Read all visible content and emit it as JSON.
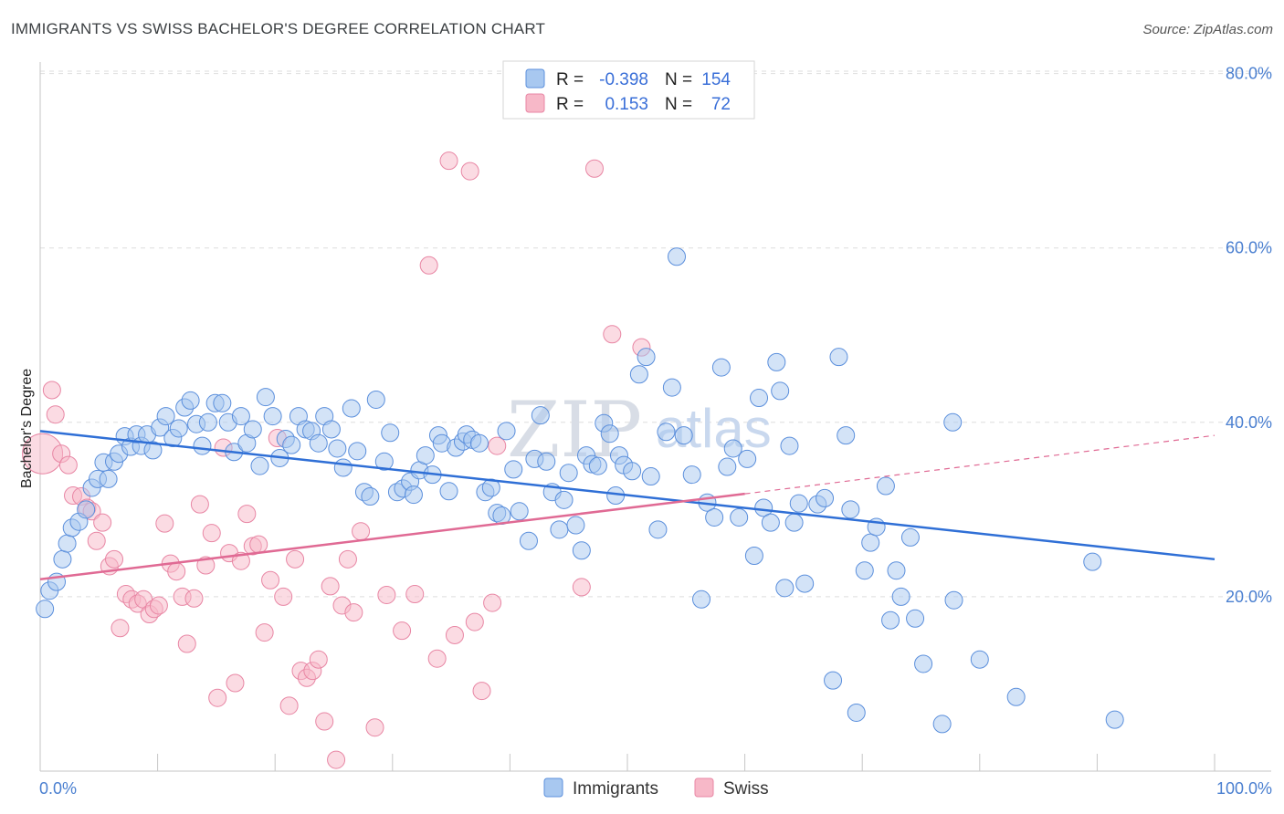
{
  "title": "IMMIGRANTS VS SWISS BACHELOR'S DEGREE CORRELATION CHART",
  "source": "Source: ZipAtlas.com",
  "watermark": {
    "zip": "ZIP",
    "atlas": "atlas"
  },
  "colors": {
    "immigrants_fill": "#a8c8f0",
    "immigrants_stroke": "#5b8fdc",
    "immigrants_line": "#2f6fd6",
    "swiss_fill": "#f7b8c8",
    "swiss_stroke": "#e886a4",
    "swiss_line": "#e06a94",
    "axis_label": "#4a7fd0"
  },
  "legend": {
    "rows": [
      {
        "r_label": "R =",
        "r_value": "-0.398",
        "n_label": "N =",
        "n_value": "154"
      },
      {
        "r_label": "R =",
        "r_value": "0.153",
        "n_label": "N =",
        "n_value": "72"
      }
    ]
  },
  "bottom_legend": {
    "immigrants": "Immigrants",
    "swiss": "Swiss"
  },
  "chart_data": {
    "type": "scatter",
    "xlabel": "",
    "ylabel": "Bachelor's Degree",
    "xlim": [
      0,
      100
    ],
    "ylim": [
      0,
      80
    ],
    "y_ticks": [
      {
        "v": 20,
        "label": "20.0%"
      },
      {
        "v": 40,
        "label": "40.0%"
      },
      {
        "v": 60,
        "label": "60.0%"
      },
      {
        "v": 80,
        "label": "80.0%"
      }
    ],
    "x_tick_labels": {
      "min": "0.0%",
      "max": "100.0%"
    },
    "x_minor_ticks": [
      10,
      20,
      30,
      40,
      50,
      60,
      70,
      80,
      90,
      100
    ],
    "grid": true,
    "legend_placement": "top-center",
    "series": [
      {
        "name": "Immigrants",
        "trend": {
          "x0": 0,
          "y0": 39.0,
          "x1": 100,
          "y1": 24.3
        },
        "points": [
          [
            0.4,
            18.6
          ],
          [
            0.8,
            20.7
          ],
          [
            1.4,
            21.7
          ],
          [
            1.9,
            24.3
          ],
          [
            2.3,
            26.1
          ],
          [
            2.7,
            27.9
          ],
          [
            3.3,
            28.6
          ],
          [
            3.9,
            30.0
          ],
          [
            4.4,
            32.5
          ],
          [
            4.9,
            33.5
          ],
          [
            5.4,
            35.4
          ],
          [
            5.8,
            33.5
          ],
          [
            6.3,
            35.5
          ],
          [
            6.7,
            36.4
          ],
          [
            7.2,
            38.4
          ],
          [
            7.7,
            37.2
          ],
          [
            8.2,
            38.6
          ],
          [
            8.6,
            37.3
          ],
          [
            9.1,
            38.6
          ],
          [
            9.6,
            36.8
          ],
          [
            10.2,
            39.4
          ],
          [
            10.7,
            40.7
          ],
          [
            11.3,
            38.2
          ],
          [
            11.8,
            39.3
          ],
          [
            12.3,
            41.7
          ],
          [
            12.8,
            42.5
          ],
          [
            13.3,
            39.8
          ],
          [
            13.8,
            37.3
          ],
          [
            14.3,
            40.0
          ],
          [
            14.9,
            42.2
          ],
          [
            15.5,
            42.2
          ],
          [
            16.0,
            40.0
          ],
          [
            16.5,
            36.6
          ],
          [
            17.1,
            40.7
          ],
          [
            17.6,
            37.6
          ],
          [
            18.1,
            39.2
          ],
          [
            18.7,
            35.0
          ],
          [
            19.2,
            42.9
          ],
          [
            19.8,
            40.7
          ],
          [
            20.4,
            35.9
          ],
          [
            20.9,
            38.1
          ],
          [
            21.4,
            37.4
          ],
          [
            22.0,
            40.7
          ],
          [
            22.6,
            39.2
          ],
          [
            23.1,
            39.0
          ],
          [
            23.7,
            37.6
          ],
          [
            24.2,
            40.7
          ],
          [
            24.8,
            39.2
          ],
          [
            25.3,
            37.0
          ],
          [
            25.8,
            34.8
          ],
          [
            26.5,
            41.6
          ],
          [
            27.0,
            36.7
          ],
          [
            27.6,
            32.0
          ],
          [
            28.1,
            31.5
          ],
          [
            28.6,
            42.6
          ],
          [
            29.3,
            35.5
          ],
          [
            29.8,
            38.8
          ],
          [
            30.4,
            32.0
          ],
          [
            30.9,
            32.4
          ],
          [
            31.5,
            33.2
          ],
          [
            31.8,
            31.7
          ],
          [
            32.3,
            34.5
          ],
          [
            32.8,
            36.2
          ],
          [
            33.4,
            34.0
          ],
          [
            33.9,
            38.5
          ],
          [
            34.2,
            37.6
          ],
          [
            34.8,
            32.1
          ],
          [
            35.4,
            37.1
          ],
          [
            36.0,
            37.8
          ],
          [
            36.3,
            38.6
          ],
          [
            36.8,
            38.0
          ],
          [
            37.4,
            37.6
          ],
          [
            37.9,
            32.0
          ],
          [
            38.4,
            32.5
          ],
          [
            38.9,
            29.6
          ],
          [
            39.3,
            29.3
          ],
          [
            39.7,
            39.0
          ],
          [
            40.3,
            34.6
          ],
          [
            40.8,
            29.8
          ],
          [
            41.6,
            26.4
          ],
          [
            42.1,
            35.8
          ],
          [
            42.6,
            40.8
          ],
          [
            43.1,
            35.5
          ],
          [
            43.6,
            32.0
          ],
          [
            44.2,
            27.7
          ],
          [
            44.6,
            31.1
          ],
          [
            45.0,
            34.2
          ],
          [
            45.6,
            28.2
          ],
          [
            46.1,
            25.3
          ],
          [
            46.5,
            36.2
          ],
          [
            47.0,
            35.2
          ],
          [
            47.5,
            35.0
          ],
          [
            48.0,
            39.9
          ],
          [
            48.5,
            38.7
          ],
          [
            49.0,
            31.6
          ],
          [
            49.3,
            36.2
          ],
          [
            49.7,
            35.1
          ],
          [
            50.4,
            34.4
          ],
          [
            51.0,
            45.5
          ],
          [
            51.6,
            47.5
          ],
          [
            52.0,
            33.8
          ],
          [
            52.6,
            27.7
          ],
          [
            53.3,
            38.9
          ],
          [
            53.8,
            44.0
          ],
          [
            54.2,
            59.0
          ],
          [
            54.8,
            38.5
          ],
          [
            55.5,
            34.0
          ],
          [
            56.3,
            19.7
          ],
          [
            56.8,
            30.8
          ],
          [
            57.4,
            29.1
          ],
          [
            58.0,
            46.3
          ],
          [
            58.5,
            34.9
          ],
          [
            59.0,
            37.0
          ],
          [
            59.5,
            29.1
          ],
          [
            60.2,
            35.8
          ],
          [
            60.8,
            24.7
          ],
          [
            61.2,
            42.8
          ],
          [
            61.6,
            30.2
          ],
          [
            62.2,
            28.5
          ],
          [
            62.7,
            46.9
          ],
          [
            63.0,
            43.6
          ],
          [
            63.4,
            21.0
          ],
          [
            63.8,
            37.3
          ],
          [
            64.2,
            28.5
          ],
          [
            64.6,
            30.7
          ],
          [
            65.1,
            21.5
          ],
          [
            66.2,
            30.6
          ],
          [
            66.8,
            31.3
          ],
          [
            67.5,
            10.4
          ],
          [
            68.0,
            47.5
          ],
          [
            68.6,
            38.5
          ],
          [
            69.0,
            30.0
          ],
          [
            69.5,
            6.7
          ],
          [
            70.2,
            23.0
          ],
          [
            70.7,
            26.2
          ],
          [
            71.2,
            28.0
          ],
          [
            72.0,
            32.7
          ],
          [
            72.4,
            17.3
          ],
          [
            72.9,
            23.0
          ],
          [
            73.3,
            20.0
          ],
          [
            74.1,
            26.8
          ],
          [
            74.5,
            17.5
          ],
          [
            75.2,
            12.3
          ],
          [
            76.8,
            5.4
          ],
          [
            77.7,
            40.0
          ],
          [
            77.8,
            19.6
          ],
          [
            80.0,
            12.8
          ],
          [
            83.1,
            8.5
          ],
          [
            89.6,
            24.0
          ],
          [
            91.5,
            5.9
          ]
        ]
      },
      {
        "name": "Swiss",
        "trend": {
          "x0": 0,
          "y0": 22.0,
          "x1": 60,
          "y1": 31.8,
          "dash_to_x": 100,
          "dash_to_y": 38.5
        },
        "points": [
          [
            0.2,
            36.4
          ],
          [
            1.0,
            43.7
          ],
          [
            1.3,
            40.9
          ],
          [
            1.8,
            36.4
          ],
          [
            2.4,
            35.1
          ],
          [
            2.8,
            31.6
          ],
          [
            3.5,
            31.5
          ],
          [
            4.0,
            30.2
          ],
          [
            4.4,
            29.8
          ],
          [
            4.8,
            26.4
          ],
          [
            5.3,
            28.5
          ],
          [
            5.9,
            23.5
          ],
          [
            6.3,
            24.3
          ],
          [
            6.8,
            16.4
          ],
          [
            7.3,
            20.3
          ],
          [
            7.8,
            19.7
          ],
          [
            8.3,
            19.2
          ],
          [
            8.8,
            19.7
          ],
          [
            9.3,
            18.0
          ],
          [
            9.7,
            18.6
          ],
          [
            10.1,
            19.0
          ],
          [
            10.6,
            28.4
          ],
          [
            11.1,
            23.8
          ],
          [
            11.6,
            22.9
          ],
          [
            12.1,
            20.0
          ],
          [
            12.5,
            14.6
          ],
          [
            13.1,
            19.8
          ],
          [
            13.6,
            30.6
          ],
          [
            14.1,
            23.6
          ],
          [
            14.6,
            27.3
          ],
          [
            15.1,
            8.4
          ],
          [
            15.6,
            37.1
          ],
          [
            16.1,
            25.0
          ],
          [
            16.6,
            10.1
          ],
          [
            17.1,
            24.1
          ],
          [
            17.6,
            29.5
          ],
          [
            18.1,
            25.8
          ],
          [
            18.6,
            26.0
          ],
          [
            19.1,
            15.9
          ],
          [
            19.6,
            21.9
          ],
          [
            20.2,
            38.2
          ],
          [
            20.7,
            20.0
          ],
          [
            21.2,
            7.5
          ],
          [
            21.7,
            24.3
          ],
          [
            22.2,
            11.5
          ],
          [
            22.7,
            10.7
          ],
          [
            23.2,
            11.5
          ],
          [
            23.7,
            12.8
          ],
          [
            24.2,
            5.7
          ],
          [
            24.7,
            21.2
          ],
          [
            25.2,
            1.3
          ],
          [
            25.7,
            19.0
          ],
          [
            26.2,
            24.3
          ],
          [
            26.7,
            18.2
          ],
          [
            27.3,
            27.5
          ],
          [
            28.5,
            5.0
          ],
          [
            29.5,
            20.2
          ],
          [
            30.8,
            16.1
          ],
          [
            31.9,
            20.3
          ],
          [
            33.1,
            58.0
          ],
          [
            33.8,
            12.9
          ],
          [
            34.8,
            70.0
          ],
          [
            35.3,
            15.6
          ],
          [
            36.6,
            68.8
          ],
          [
            37.0,
            17.1
          ],
          [
            37.6,
            9.2
          ],
          [
            38.5,
            19.3
          ],
          [
            38.9,
            37.3
          ],
          [
            46.1,
            21.1
          ],
          [
            47.2,
            69.1
          ],
          [
            48.7,
            50.1
          ],
          [
            51.2,
            48.6
          ]
        ]
      }
    ]
  }
}
